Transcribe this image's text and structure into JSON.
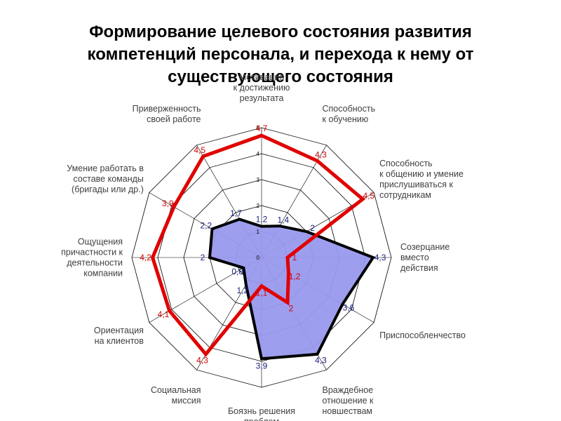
{
  "title_lines": [
    "Формирование целевого состояния развития",
    "компетенций персонала, и перехода к нему от",
    "существующего состояния"
  ],
  "chart_data": {
    "type": "radar",
    "categories": [
      "Мотивация к достижению результата",
      "Способность к обучению",
      "Способность к общению и умение прислушиваться к сотрудникам",
      "Созерцание вместо действия",
      "Приспособленчество",
      "Враждебное отношение к новшествам",
      "Боязнь решения проблем",
      "Социальная миссия",
      "Ориентация на клиентов",
      "Ощущения причастности к деятельности компании",
      "Умение работать в составе команды (бригады или др.)",
      "Приверженность своей работе"
    ],
    "category_lines": [
      [
        "Мотивация",
        "к достижению",
        "результата"
      ],
      [
        "Способность",
        "к обучению"
      ],
      [
        "Способность",
        "к общению и умение",
        "прислушиваться к",
        "сотрудникам"
      ],
      [
        "Созерцание",
        "вместо",
        "действия"
      ],
      [
        "Приспособленчество"
      ],
      [
        "Враждебное",
        "отношение к",
        "новшествам"
      ],
      [
        "Боязнь решения",
        "проблем"
      ],
      [
        "Социальная",
        "миссия"
      ],
      [
        "Ориентация",
        "на клиентов"
      ],
      [
        "Ощущения",
        "причастности к",
        "деятельности",
        "компании"
      ],
      [
        "Умение работать в",
        "составе команды",
        "(бригады или др.)"
      ],
      [
        "Приверженность",
        "своей работе"
      ]
    ],
    "series": [
      {
        "color": "#e00000",
        "values": [
          4.7,
          4.3,
          4.5,
          1,
          1.2,
          2,
          1.1,
          4.3,
          4.1,
          4.2,
          3.9,
          4.5
        ],
        "labels": [
          "4,7",
          "4,3",
          "4,5",
          "1",
          "1,2",
          "2",
          "1,1",
          "4,3",
          "4,1",
          "4,2",
          "3,9",
          "4,5"
        ]
      },
      {
        "color": "#000000",
        "fill": "#9999ee",
        "values": [
          1.2,
          1.4,
          2,
          4.3,
          3.6,
          4.3,
          3.9,
          1.2,
          0.8,
          2,
          2.2,
          1.7
        ],
        "labels": [
          "1,2",
          "1,4",
          "2",
          "4,3",
          "3,6",
          "4,3",
          "3,9",
          "1,2",
          "0,8",
          "2",
          "2,2",
          "1,7"
        ]
      }
    ],
    "r_ticks": [
      0,
      1,
      2,
      3,
      4,
      5
    ],
    "r_range": [
      0,
      5
    ],
    "grid": true
  }
}
